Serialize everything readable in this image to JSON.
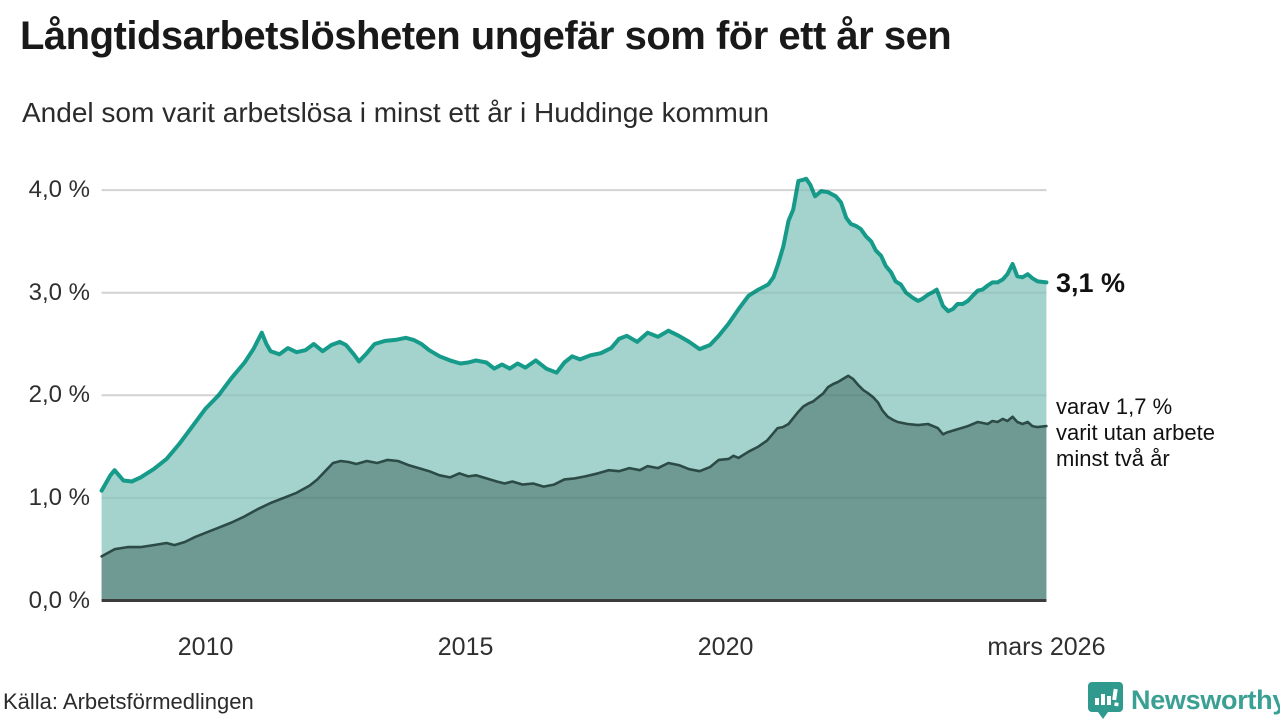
{
  "header": {
    "title": "Långtidsarbetslösheten ungefär som för ett år sen",
    "subtitle": "Andel som varit arbetslösa i minst ett år i Huddinge kommun"
  },
  "footer": {
    "source": "Källa: Arbetsförmedlingen",
    "brand": "Newsworthy"
  },
  "colors": {
    "series1_line": "#169a89",
    "series1_fill": "#a3d3cc",
    "series2_line": "#2d4b46",
    "series2_fill": "#6f9a94",
    "gridline": "#e0e0e0",
    "axis": "#3b3b3b",
    "brand_teal": "#3aa093",
    "brand_icon": "#2f9a8d",
    "text_dark": "#191919"
  },
  "chart_data": {
    "type": "area",
    "title": "Långtidsarbetslösheten ungefär som för ett år sen",
    "subtitle": "Andel som varit arbetslösa i minst ett år i Huddinge kommun",
    "unit": "%",
    "xrange": [
      2008.0,
      2026.17
    ],
    "ylim": [
      0,
      4.3
    ],
    "grid": true,
    "yticks": [
      {
        "v": 4,
        "label": "4,0 %"
      },
      {
        "v": 3,
        "label": "3,0 %"
      },
      {
        "v": 2,
        "label": "2,0 %"
      },
      {
        "v": 1,
        "label": "1,0 %"
      },
      {
        "v": 0,
        "label": "0,0 %"
      }
    ],
    "xticks": [
      {
        "year": 2010,
        "label": "2010"
      },
      {
        "year": 2015,
        "label": "2015"
      },
      {
        "year": 2020,
        "label": "2020"
      },
      {
        "year": 2026.17,
        "label": "mars 2026"
      }
    ],
    "annotations": {
      "end_value": "3,1 %",
      "note_lines": [
        "varav 1,7 %",
        "varit utan arbete",
        "minst två år"
      ]
    },
    "series": [
      {
        "name": "Andel arbetslösa minst ett år",
        "end_value": 3.1,
        "line_color": "#169a89",
        "fill_color": "#a3d3cc",
        "line_width": 4,
        "points": [
          [
            2008.0,
            1.07
          ],
          [
            2008.17,
            1.22
          ],
          [
            2008.25,
            1.27
          ],
          [
            2008.42,
            1.17
          ],
          [
            2008.58,
            1.16
          ],
          [
            2008.75,
            1.2
          ],
          [
            2009.0,
            1.28
          ],
          [
            2009.25,
            1.38
          ],
          [
            2009.5,
            1.53
          ],
          [
            2009.75,
            1.7
          ],
          [
            2010.0,
            1.87
          ],
          [
            2010.25,
            2.0
          ],
          [
            2010.5,
            2.17
          ],
          [
            2010.75,
            2.32
          ],
          [
            2010.92,
            2.45
          ],
          [
            2011.08,
            2.61
          ],
          [
            2011.17,
            2.5
          ],
          [
            2011.25,
            2.43
          ],
          [
            2011.42,
            2.4
          ],
          [
            2011.58,
            2.46
          ],
          [
            2011.75,
            2.42
          ],
          [
            2011.92,
            2.44
          ],
          [
            2012.08,
            2.5
          ],
          [
            2012.25,
            2.43
          ],
          [
            2012.42,
            2.49
          ],
          [
            2012.58,
            2.52
          ],
          [
            2012.7,
            2.49
          ],
          [
            2012.85,
            2.4
          ],
          [
            2012.95,
            2.33
          ],
          [
            2013.1,
            2.41
          ],
          [
            2013.25,
            2.5
          ],
          [
            2013.45,
            2.53
          ],
          [
            2013.65,
            2.54
          ],
          [
            2013.85,
            2.56
          ],
          [
            2014.0,
            2.54
          ],
          [
            2014.15,
            2.5
          ],
          [
            2014.3,
            2.44
          ],
          [
            2014.5,
            2.38
          ],
          [
            2014.7,
            2.34
          ],
          [
            2014.9,
            2.31
          ],
          [
            2015.05,
            2.32
          ],
          [
            2015.2,
            2.34
          ],
          [
            2015.4,
            2.32
          ],
          [
            2015.55,
            2.26
          ],
          [
            2015.7,
            2.3
          ],
          [
            2015.85,
            2.26
          ],
          [
            2016.0,
            2.31
          ],
          [
            2016.15,
            2.27
          ],
          [
            2016.35,
            2.34
          ],
          [
            2016.55,
            2.26
          ],
          [
            2016.75,
            2.22
          ],
          [
            2016.9,
            2.32
          ],
          [
            2017.05,
            2.38
          ],
          [
            2017.2,
            2.35
          ],
          [
            2017.4,
            2.39
          ],
          [
            2017.6,
            2.41
          ],
          [
            2017.8,
            2.46
          ],
          [
            2017.95,
            2.55
          ],
          [
            2018.1,
            2.58
          ],
          [
            2018.3,
            2.52
          ],
          [
            2018.5,
            2.61
          ],
          [
            2018.7,
            2.57
          ],
          [
            2018.9,
            2.63
          ],
          [
            2019.1,
            2.58
          ],
          [
            2019.3,
            2.52
          ],
          [
            2019.5,
            2.45
          ],
          [
            2019.7,
            2.49
          ],
          [
            2019.87,
            2.58
          ],
          [
            2020.06,
            2.7
          ],
          [
            2020.25,
            2.84
          ],
          [
            2020.44,
            2.97
          ],
          [
            2020.63,
            3.03
          ],
          [
            2020.82,
            3.08
          ],
          [
            2020.92,
            3.15
          ],
          [
            2021.01,
            3.28
          ],
          [
            2021.11,
            3.45
          ],
          [
            2021.21,
            3.7
          ],
          [
            2021.3,
            3.81
          ],
          [
            2021.4,
            4.09
          ],
          [
            2021.49,
            4.1
          ],
          [
            2021.55,
            4.11
          ],
          [
            2021.63,
            4.05
          ],
          [
            2021.72,
            3.94
          ],
          [
            2021.84,
            3.99
          ],
          [
            2021.97,
            3.98
          ],
          [
            2022.12,
            3.94
          ],
          [
            2022.22,
            3.88
          ],
          [
            2022.32,
            3.73
          ],
          [
            2022.41,
            3.67
          ],
          [
            2022.51,
            3.65
          ],
          [
            2022.6,
            3.62
          ],
          [
            2022.7,
            3.55
          ],
          [
            2022.8,
            3.5
          ],
          [
            2022.89,
            3.41
          ],
          [
            2022.99,
            3.36
          ],
          [
            2023.08,
            3.26
          ],
          [
            2023.18,
            3.2
          ],
          [
            2023.27,
            3.11
          ],
          [
            2023.37,
            3.08
          ],
          [
            2023.47,
            3.0
          ],
          [
            2023.6,
            2.95
          ],
          [
            2023.7,
            2.92
          ],
          [
            2023.78,
            2.94
          ],
          [
            2023.89,
            2.98
          ],
          [
            2024.0,
            3.01
          ],
          [
            2024.06,
            3.03
          ],
          [
            2024.18,
            2.87
          ],
          [
            2024.28,
            2.82
          ],
          [
            2024.37,
            2.84
          ],
          [
            2024.46,
            2.89
          ],
          [
            2024.56,
            2.89
          ],
          [
            2024.66,
            2.92
          ],
          [
            2024.75,
            2.97
          ],
          [
            2024.85,
            3.02
          ],
          [
            2024.94,
            3.03
          ],
          [
            2025.04,
            3.07
          ],
          [
            2025.13,
            3.1
          ],
          [
            2025.23,
            3.1
          ],
          [
            2025.33,
            3.13
          ],
          [
            2025.42,
            3.18
          ],
          [
            2025.52,
            3.28
          ],
          [
            2025.61,
            3.16
          ],
          [
            2025.71,
            3.15
          ],
          [
            2025.81,
            3.18
          ],
          [
            2025.9,
            3.14
          ],
          [
            2026.0,
            3.11
          ],
          [
            2026.17,
            3.1
          ]
        ]
      },
      {
        "name": "varav utan arbete minst två år",
        "end_value": 1.7,
        "line_color": "#2d4b46",
        "fill_color": "#6f9a94",
        "line_width": 2.6,
        "points": [
          [
            2008.0,
            0.43
          ],
          [
            2008.25,
            0.5
          ],
          [
            2008.5,
            0.52
          ],
          [
            2008.75,
            0.52
          ],
          [
            2009.0,
            0.54
          ],
          [
            2009.25,
            0.56
          ],
          [
            2009.4,
            0.54
          ],
          [
            2009.6,
            0.57
          ],
          [
            2009.8,
            0.62
          ],
          [
            2010.0,
            0.66
          ],
          [
            2010.25,
            0.71
          ],
          [
            2010.5,
            0.76
          ],
          [
            2010.75,
            0.82
          ],
          [
            2011.0,
            0.89
          ],
          [
            2011.25,
            0.95
          ],
          [
            2011.5,
            1.0
          ],
          [
            2011.75,
            1.05
          ],
          [
            2012.0,
            1.12
          ],
          [
            2012.15,
            1.18
          ],
          [
            2012.3,
            1.26
          ],
          [
            2012.45,
            1.34
          ],
          [
            2012.6,
            1.36
          ],
          [
            2012.75,
            1.35
          ],
          [
            2012.9,
            1.33
          ],
          [
            2013.1,
            1.36
          ],
          [
            2013.3,
            1.34
          ],
          [
            2013.5,
            1.37
          ],
          [
            2013.7,
            1.36
          ],
          [
            2013.9,
            1.32
          ],
          [
            2014.1,
            1.29
          ],
          [
            2014.3,
            1.26
          ],
          [
            2014.5,
            1.22
          ],
          [
            2014.7,
            1.2
          ],
          [
            2014.88,
            1.24
          ],
          [
            2015.05,
            1.21
          ],
          [
            2015.2,
            1.22
          ],
          [
            2015.4,
            1.19
          ],
          [
            2015.6,
            1.16
          ],
          [
            2015.75,
            1.14
          ],
          [
            2015.9,
            1.16
          ],
          [
            2016.1,
            1.13
          ],
          [
            2016.3,
            1.14
          ],
          [
            2016.5,
            1.11
          ],
          [
            2016.7,
            1.13
          ],
          [
            2016.9,
            1.18
          ],
          [
            2017.1,
            1.19
          ],
          [
            2017.3,
            1.21
          ],
          [
            2017.55,
            1.24
          ],
          [
            2017.75,
            1.27
          ],
          [
            2017.95,
            1.26
          ],
          [
            2018.15,
            1.29
          ],
          [
            2018.35,
            1.27
          ],
          [
            2018.5,
            1.31
          ],
          [
            2018.7,
            1.29
          ],
          [
            2018.9,
            1.34
          ],
          [
            2019.1,
            1.32
          ],
          [
            2019.3,
            1.28
          ],
          [
            2019.5,
            1.26
          ],
          [
            2019.7,
            1.3
          ],
          [
            2019.87,
            1.37
          ],
          [
            2020.06,
            1.38
          ],
          [
            2020.15,
            1.41
          ],
          [
            2020.25,
            1.39
          ],
          [
            2020.44,
            1.45
          ],
          [
            2020.63,
            1.5
          ],
          [
            2020.8,
            1.56
          ],
          [
            2020.9,
            1.62
          ],
          [
            2021.0,
            1.68
          ],
          [
            2021.1,
            1.69
          ],
          [
            2021.21,
            1.72
          ],
          [
            2021.4,
            1.84
          ],
          [
            2021.49,
            1.89
          ],
          [
            2021.59,
            1.92
          ],
          [
            2021.68,
            1.94
          ],
          [
            2021.78,
            1.98
          ],
          [
            2021.88,
            2.02
          ],
          [
            2021.97,
            2.08
          ],
          [
            2022.07,
            2.11
          ],
          [
            2022.16,
            2.13
          ],
          [
            2022.26,
            2.16
          ],
          [
            2022.36,
            2.19
          ],
          [
            2022.45,
            2.16
          ],
          [
            2022.55,
            2.1
          ],
          [
            2022.65,
            2.05
          ],
          [
            2022.74,
            2.02
          ],
          [
            2022.84,
            1.98
          ],
          [
            2022.93,
            1.93
          ],
          [
            2023.02,
            1.85
          ],
          [
            2023.12,
            1.79
          ],
          [
            2023.22,
            1.76
          ],
          [
            2023.31,
            1.74
          ],
          [
            2023.5,
            1.72
          ],
          [
            2023.7,
            1.71
          ],
          [
            2023.89,
            1.72
          ],
          [
            2024.08,
            1.68
          ],
          [
            2024.18,
            1.62
          ],
          [
            2024.27,
            1.64
          ],
          [
            2024.46,
            1.67
          ],
          [
            2024.66,
            1.7
          ],
          [
            2024.85,
            1.74
          ],
          [
            2025.04,
            1.72
          ],
          [
            2025.13,
            1.75
          ],
          [
            2025.23,
            1.74
          ],
          [
            2025.33,
            1.77
          ],
          [
            2025.42,
            1.75
          ],
          [
            2025.52,
            1.79
          ],
          [
            2025.61,
            1.74
          ],
          [
            2025.71,
            1.72
          ],
          [
            2025.81,
            1.74
          ],
          [
            2025.9,
            1.7
          ],
          [
            2026.0,
            1.69
          ],
          [
            2026.17,
            1.7
          ]
        ]
      }
    ]
  }
}
